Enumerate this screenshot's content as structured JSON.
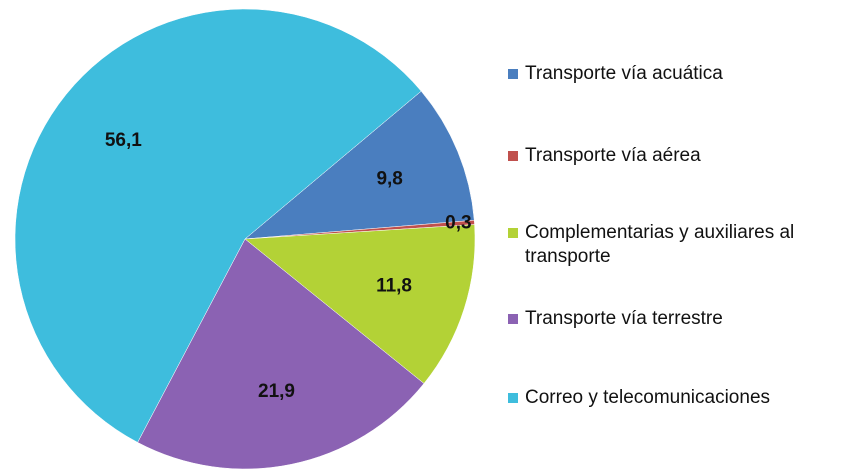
{
  "chart_data": {
    "type": "pie",
    "categories": [
      "Transporte vía acuática",
      "Transporte vía aérea",
      "Complementarias y auxiliares al transporte",
      "Transporte vía terrestre",
      "Correo y telecomunicaciones"
    ],
    "values": [
      9.8,
      0.3,
      11.8,
      21.9,
      56.1
    ],
    "value_labels": [
      "9,8",
      "0,3",
      "11,8",
      "21,9",
      "56,1"
    ],
    "colors": [
      "#4a7ebf",
      "#c0504d",
      "#b3d236",
      "#8b62b3",
      "#3ebddd"
    ],
    "legend": "right"
  }
}
